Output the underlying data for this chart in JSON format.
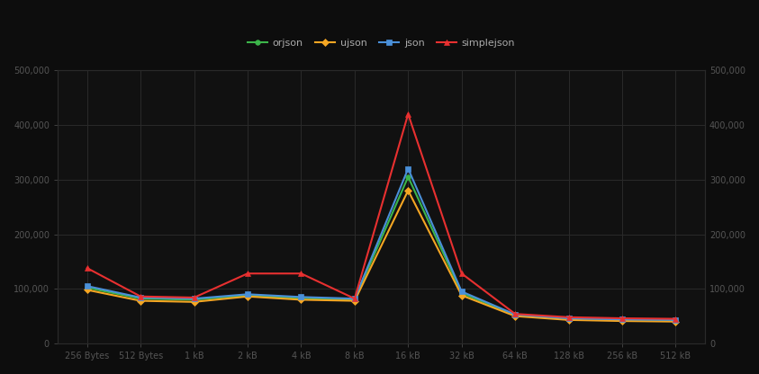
{
  "background_color": "#0d0d0d",
  "plot_bg_color": "#111111",
  "grid_color": "#2a2a2a",
  "text_color": "#555555",
  "spine_color": "#2a2a2a",
  "series": [
    {
      "label": "orjson",
      "color": "#3cb54a",
      "marker": "o",
      "values": [
        102000,
        82000,
        80000,
        88000,
        83000,
        80000,
        305000,
        92000,
        52000,
        46000,
        44000,
        43000
      ]
    },
    {
      "label": "ujson",
      "color": "#f5a623",
      "marker": "D",
      "values": [
        98000,
        78000,
        76000,
        86000,
        80000,
        78000,
        280000,
        88000,
        50000,
        43000,
        41000,
        40000
      ]
    },
    {
      "label": "json",
      "color": "#4a90d9",
      "marker": "s",
      "values": [
        105000,
        84000,
        82000,
        90000,
        85000,
        82000,
        320000,
        95000,
        53000,
        46000,
        44000,
        43000
      ]
    },
    {
      "label": "simplejson",
      "color": "#e83030",
      "marker": "^",
      "values": [
        138000,
        86000,
        84000,
        128000,
        128000,
        82000,
        420000,
        128000,
        54000,
        48000,
        46000,
        45000
      ]
    }
  ],
  "x_labels": [
    "256 Bytes",
    "512 Bytes",
    "1 kB",
    "2 kB",
    "4 kB",
    "8 kB",
    "16 kB",
    "32 kB",
    "64 kB",
    "128 kB",
    "256 kB",
    "512 kB"
  ],
  "ylim": [
    0,
    500000
  ],
  "yticks": [
    0,
    100000,
    200000,
    300000,
    400000,
    500000
  ],
  "ytick_labels": [
    "0",
    "100,000",
    "200,000",
    "300,000",
    "400,000",
    "500,000"
  ],
  "legend_text_color": "#aaaaaa",
  "tick_label_fontsize": 7,
  "marker_size": 4,
  "line_width": 1.5
}
